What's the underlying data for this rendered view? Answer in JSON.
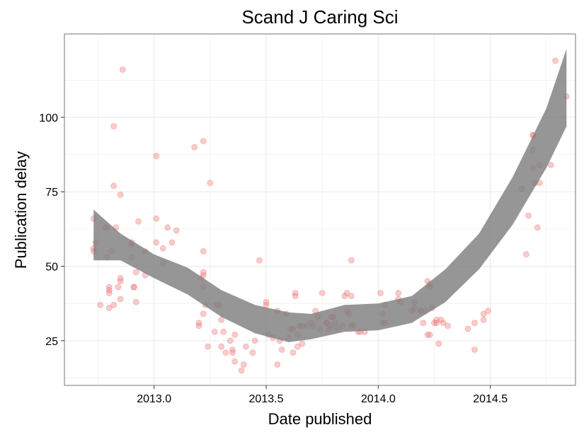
{
  "chart_data": {
    "type": "scatter",
    "title": "Scand J Caring Sci",
    "xlabel": "Date published",
    "ylabel": "Publication delay",
    "xlim": [
      2012.6,
      2014.88
    ],
    "ylim": [
      10,
      128
    ],
    "x_ticks": [
      2013.0,
      2013.5,
      2014.0,
      2014.5
    ],
    "x_tick_labels": [
      "2013.0",
      "2013.5",
      "2014.0",
      "2014.5"
    ],
    "y_ticks": [
      25,
      50,
      75,
      100
    ],
    "y_tick_labels": [
      "25",
      "50",
      "75",
      "100"
    ],
    "grid": true,
    "legend": "none",
    "colors": {
      "points": "#f08080",
      "points_stroke": "#e05050",
      "smooth_band": "#7f7f7f",
      "grid": "#ebebeb",
      "panel_border": "#8c8c8c"
    },
    "points": [
      [
        2012.73,
        66
      ],
      [
        2012.73,
        55
      ],
      [
        2012.73,
        56
      ],
      [
        2012.74,
        58
      ],
      [
        2012.76,
        37
      ],
      [
        2012.78,
        63
      ],
      [
        2012.79,
        53
      ],
      [
        2012.79,
        63
      ],
      [
        2012.8,
        41
      ],
      [
        2012.8,
        43
      ],
      [
        2012.8,
        36
      ],
      [
        2012.8,
        42
      ],
      [
        2012.81,
        55
      ],
      [
        2012.82,
        97
      ],
      [
        2012.82,
        77
      ],
      [
        2012.82,
        37
      ],
      [
        2012.83,
        63
      ],
      [
        2012.84,
        43
      ],
      [
        2012.85,
        45
      ],
      [
        2012.85,
        46
      ],
      [
        2012.85,
        39
      ],
      [
        2012.85,
        74
      ],
      [
        2012.86,
        116
      ],
      [
        2012.9,
        53
      ],
      [
        2012.9,
        57
      ],
      [
        2012.9,
        58
      ],
      [
        2012.91,
        43
      ],
      [
        2012.91,
        43
      ],
      [
        2012.92,
        48
      ],
      [
        2012.92,
        38
      ],
      [
        2012.93,
        65
      ],
      [
        2012.96,
        47
      ],
      [
        2012.96,
        55
      ],
      [
        2013.01,
        87
      ],
      [
        2013.01,
        66
      ],
      [
        2013.01,
        58
      ],
      [
        2013.04,
        51
      ],
      [
        2013.04,
        56
      ],
      [
        2013.06,
        63
      ],
      [
        2013.08,
        58
      ],
      [
        2013.1,
        62
      ],
      [
        2013.18,
        90
      ],
      [
        2013.2,
        31
      ],
      [
        2013.2,
        30
      ],
      [
        2013.21,
        46
      ],
      [
        2013.22,
        47
      ],
      [
        2013.22,
        92
      ],
      [
        2013.22,
        55
      ],
      [
        2013.22,
        48
      ],
      [
        2013.22,
        43
      ],
      [
        2013.22,
        34
      ],
      [
        2013.23,
        37
      ],
      [
        2013.24,
        23
      ],
      [
        2013.25,
        78
      ],
      [
        2013.27,
        28
      ],
      [
        2013.28,
        37
      ],
      [
        2013.29,
        37
      ],
      [
        2013.3,
        32
      ],
      [
        2013.3,
        23
      ],
      [
        2013.31,
        28
      ],
      [
        2013.32,
        21
      ],
      [
        2013.34,
        25
      ],
      [
        2013.35,
        22
      ],
      [
        2013.35,
        21
      ],
      [
        2013.36,
        18
      ],
      [
        2013.36,
        27
      ],
      [
        2013.39,
        15
      ],
      [
        2013.4,
        17
      ],
      [
        2013.41,
        23
      ],
      [
        2013.44,
        21
      ],
      [
        2013.45,
        25
      ],
      [
        2013.47,
        52
      ],
      [
        2013.5,
        37
      ],
      [
        2013.5,
        38
      ],
      [
        2013.51,
        27
      ],
      [
        2013.53,
        26
      ],
      [
        2013.55,
        35
      ],
      [
        2013.55,
        17
      ],
      [
        2013.56,
        25
      ],
      [
        2013.57,
        22
      ],
      [
        2013.59,
        34
      ],
      [
        2013.6,
        26
      ],
      [
        2013.61,
        29
      ],
      [
        2013.62,
        21
      ],
      [
        2013.62,
        29
      ],
      [
        2013.63,
        40
      ],
      [
        2013.63,
        41
      ],
      [
        2013.64,
        23
      ],
      [
        2013.64,
        27
      ],
      [
        2013.65,
        30
      ],
      [
        2013.66,
        30
      ],
      [
        2013.66,
        24
      ],
      [
        2013.68,
        30
      ],
      [
        2013.7,
        31
      ],
      [
        2013.71,
        30
      ],
      [
        2013.72,
        35
      ],
      [
        2013.73,
        33
      ],
      [
        2013.74,
        29
      ],
      [
        2013.75,
        41
      ],
      [
        2013.77,
        31
      ],
      [
        2013.77,
        31
      ],
      [
        2013.78,
        29
      ],
      [
        2013.79,
        30
      ],
      [
        2013.79,
        33
      ],
      [
        2013.8,
        33
      ],
      [
        2013.81,
        31
      ],
      [
        2013.82,
        29
      ],
      [
        2013.84,
        30
      ],
      [
        2013.85,
        40
      ],
      [
        2013.86,
        35
      ],
      [
        2013.86,
        41
      ],
      [
        2013.87,
        34
      ],
      [
        2013.88,
        52
      ],
      [
        2013.88,
        30
      ],
      [
        2013.88,
        40
      ],
      [
        2013.89,
        30
      ],
      [
        2013.91,
        28
      ],
      [
        2013.92,
        28
      ],
      [
        2013.94,
        28
      ],
      [
        2014.01,
        41
      ],
      [
        2014.02,
        34
      ],
      [
        2014.02,
        31
      ],
      [
        2014.03,
        37
      ],
      [
        2014.03,
        31
      ],
      [
        2014.09,
        39
      ],
      [
        2014.09,
        41
      ],
      [
        2014.1,
        38
      ],
      [
        2014.15,
        35
      ],
      [
        2014.16,
        36
      ],
      [
        2014.16,
        38
      ],
      [
        2014.19,
        35
      ],
      [
        2014.19,
        35
      ],
      [
        2014.2,
        31
      ],
      [
        2014.21,
        35
      ],
      [
        2014.22,
        45
      ],
      [
        2014.22,
        27
      ],
      [
        2014.23,
        44
      ],
      [
        2014.23,
        27
      ],
      [
        2014.23,
        43
      ],
      [
        2014.24,
        36
      ],
      [
        2014.25,
        31
      ],
      [
        2014.26,
        32
      ],
      [
        2014.26,
        31
      ],
      [
        2014.27,
        24
      ],
      [
        2014.28,
        32
      ],
      [
        2014.29,
        31
      ],
      [
        2014.31,
        30
      ],
      [
        2014.4,
        29
      ],
      [
        2014.43,
        22
      ],
      [
        2014.43,
        31
      ],
      [
        2014.47,
        34
      ],
      [
        2014.47,
        32
      ],
      [
        2014.49,
        35
      ],
      [
        2014.64,
        76
      ],
      [
        2014.66,
        54
      ],
      [
        2014.67,
        67
      ],
      [
        2014.69,
        83
      ],
      [
        2014.69,
        89
      ],
      [
        2014.69,
        94
      ],
      [
        2014.69,
        94
      ],
      [
        2014.7,
        78
      ],
      [
        2014.71,
        63
      ],
      [
        2014.72,
        78
      ],
      [
        2014.72,
        84
      ],
      [
        2014.77,
        84
      ],
      [
        2014.79,
        119
      ],
      [
        2014.84,
        107
      ]
    ],
    "smooth_band": {
      "x": [
        2012.73,
        2012.85,
        2013.0,
        2013.15,
        2013.3,
        2013.45,
        2013.6,
        2013.7,
        2013.85,
        2014.0,
        2014.15,
        2014.3,
        2014.45,
        2014.6,
        2014.75,
        2014.84
      ],
      "upper": [
        69,
        61,
        54,
        49.5,
        42,
        37,
        34.5,
        34,
        37,
        37.5,
        40,
        49,
        61,
        80,
        103,
        123
      ],
      "lower": [
        52,
        52,
        46,
        40.5,
        33,
        27.5,
        24.5,
        25.5,
        28,
        28.5,
        31,
        38,
        49,
        64,
        83,
        97
      ]
    }
  }
}
